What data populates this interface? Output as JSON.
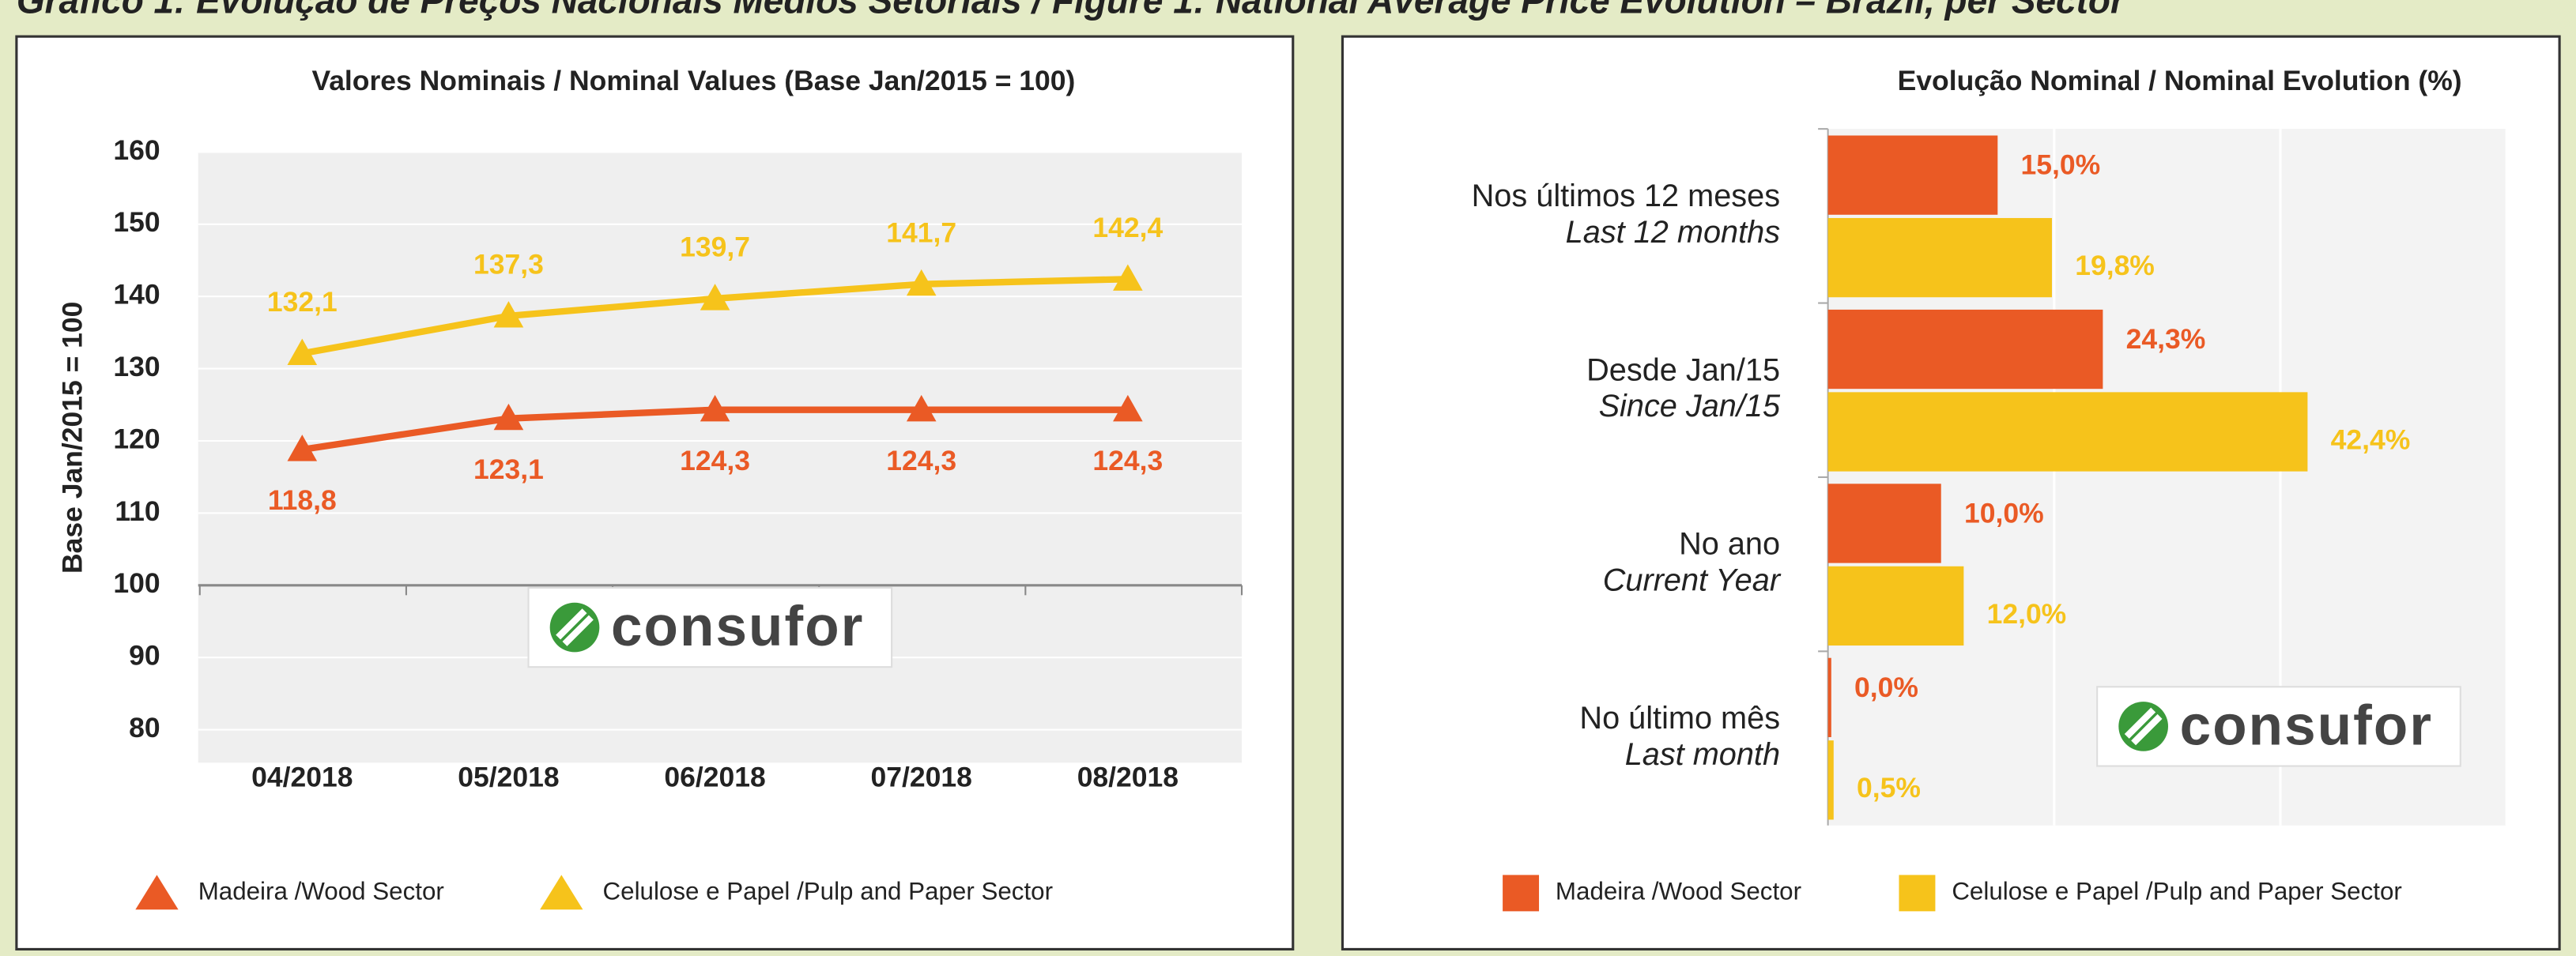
{
  "header": {
    "title": "Gráfico 1: Evolução de Preços Nacionais Médios Setoriais / Figure 1: National Average Price Evolution – Brazil, per Sector"
  },
  "chart_data": [
    {
      "type": "line",
      "title": "Valores Nominais / Nominal Values (Base Jan/2015 = 100)",
      "y_label": "Base Jan/2015 = 100",
      "categories": [
        "04/2018",
        "05/2018",
        "06/2018",
        "07/2018",
        "08/2018"
      ],
      "series": [
        {
          "name": "Madeira /Wood Sector",
          "color": "#ea5a25",
          "values": [
            118.8,
            123.1,
            124.3,
            124.3,
            124.3
          ],
          "value_labels": [
            "118,8",
            "123,1",
            "124,3",
            "124,3",
            "124,3"
          ]
        },
        {
          "name": "Celulose e Papel /Pulp and Paper Sector",
          "color": "#f6c31b",
          "values": [
            132.1,
            137.3,
            139.7,
            141.7,
            142.4
          ],
          "value_labels": [
            "132,1",
            "137,3",
            "139,7",
            "141,7",
            "142,4"
          ]
        }
      ],
      "ylim": [
        80,
        160
      ],
      "yticks": [
        80,
        90,
        100,
        110,
        120,
        130,
        140,
        150,
        160
      ],
      "grid": true,
      "legend": "bottom",
      "annotations": [
        "consufor"
      ]
    },
    {
      "type": "hbar",
      "title": "Evolução Nominal / Nominal Evolution (%)",
      "categories": [
        [
          "Nos últimos 12 meses",
          "Last 12 months"
        ],
        [
          "Desde Jan/15",
          "Since Jan/15"
        ],
        [
          "No ano",
          "Current Year"
        ],
        [
          "No último mês",
          "Last month"
        ]
      ],
      "series": [
        {
          "name": "Madeira /Wood Sector",
          "color": "#ea5a25",
          "values": [
            15.0,
            24.3,
            10.0,
            0.0
          ],
          "value_labels": [
            "15,0%",
            "24,3%",
            "10,0%",
            "0,0%"
          ]
        },
        {
          "name": "Celulose e Papel /Pulp and Paper Sector",
          "color": "#f6c31b",
          "values": [
            19.8,
            42.4,
            12.0,
            0.5
          ],
          "value_labels": [
            "19,8%",
            "42,4%",
            "12,0%",
            "0,5%"
          ]
        }
      ],
      "xlim": [
        0,
        60
      ],
      "xticks": [
        0,
        20,
        40,
        60
      ],
      "grid": true,
      "legend": "bottom",
      "annotations": [
        "consufor"
      ]
    }
  ]
}
